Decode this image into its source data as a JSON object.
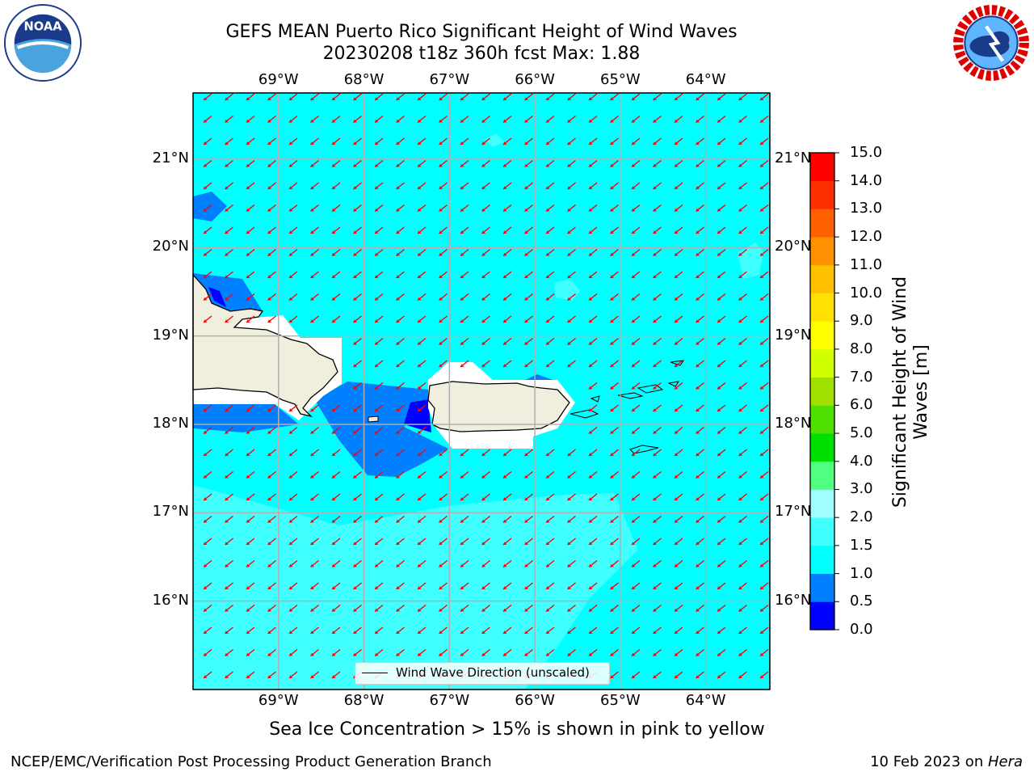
{
  "title": {
    "line1": "GEFS MEAN Puerto Rico Significant Height of Wind Waves",
    "line2": "20230208 t18z 360h fcst   Max: 1.88"
  },
  "logos": {
    "left": {
      "icon": "noaa-logo",
      "text": "NOAA"
    },
    "right": {
      "icon": "nws-logo"
    }
  },
  "map": {
    "lon_ticks": [
      "69°W",
      "68°W",
      "67°W",
      "66°W",
      "65°W",
      "64°W"
    ],
    "lon_values": [
      -69,
      -68,
      -67,
      -66,
      -65,
      -64
    ],
    "lat_ticks": [
      "21°N",
      "20°N",
      "19°N",
      "18°N",
      "17°N",
      "16°N"
    ],
    "lat_values": [
      21,
      20,
      19,
      18,
      17,
      16
    ],
    "extent": {
      "lon_min": -70.0,
      "lon_max": -63.25,
      "lat_min": 15.0,
      "lat_max": 21.75
    },
    "vector_color": "#ff0000",
    "vector_direction": "toward south-southwest",
    "legend_label": "Wind Wave Direction (unscaled)"
  },
  "colorbar": {
    "title": "Significant Height of Wind\nWaves [m]",
    "tick_labels": [
      "0.0",
      "0.5",
      "1.0",
      "1.5",
      "2.0",
      "3.0",
      "4.0",
      "5.0",
      "6.0",
      "7.0",
      "8.0",
      "9.0",
      "10.0",
      "11.0",
      "12.0",
      "13.0",
      "14.0",
      "15.0"
    ],
    "colors": [
      "#0000ff",
      "#0080ff",
      "#00ffff",
      "#40ffff",
      "#a0ffff",
      "#50ff80",
      "#00e000",
      "#50e000",
      "#a0e000",
      "#d0ff00",
      "#ffff00",
      "#ffe000",
      "#ffc000",
      "#ff9000",
      "#ff6000",
      "#ff3000",
      "#ff0000"
    ]
  },
  "note": "Sea Ice Concentration > 15% is shown in pink to yellow",
  "footer": {
    "credit": "NCEP/EMC/Verification Post Processing Product Generation Branch",
    "date": "10 Feb 2023 on ",
    "machine": "Hera"
  }
}
